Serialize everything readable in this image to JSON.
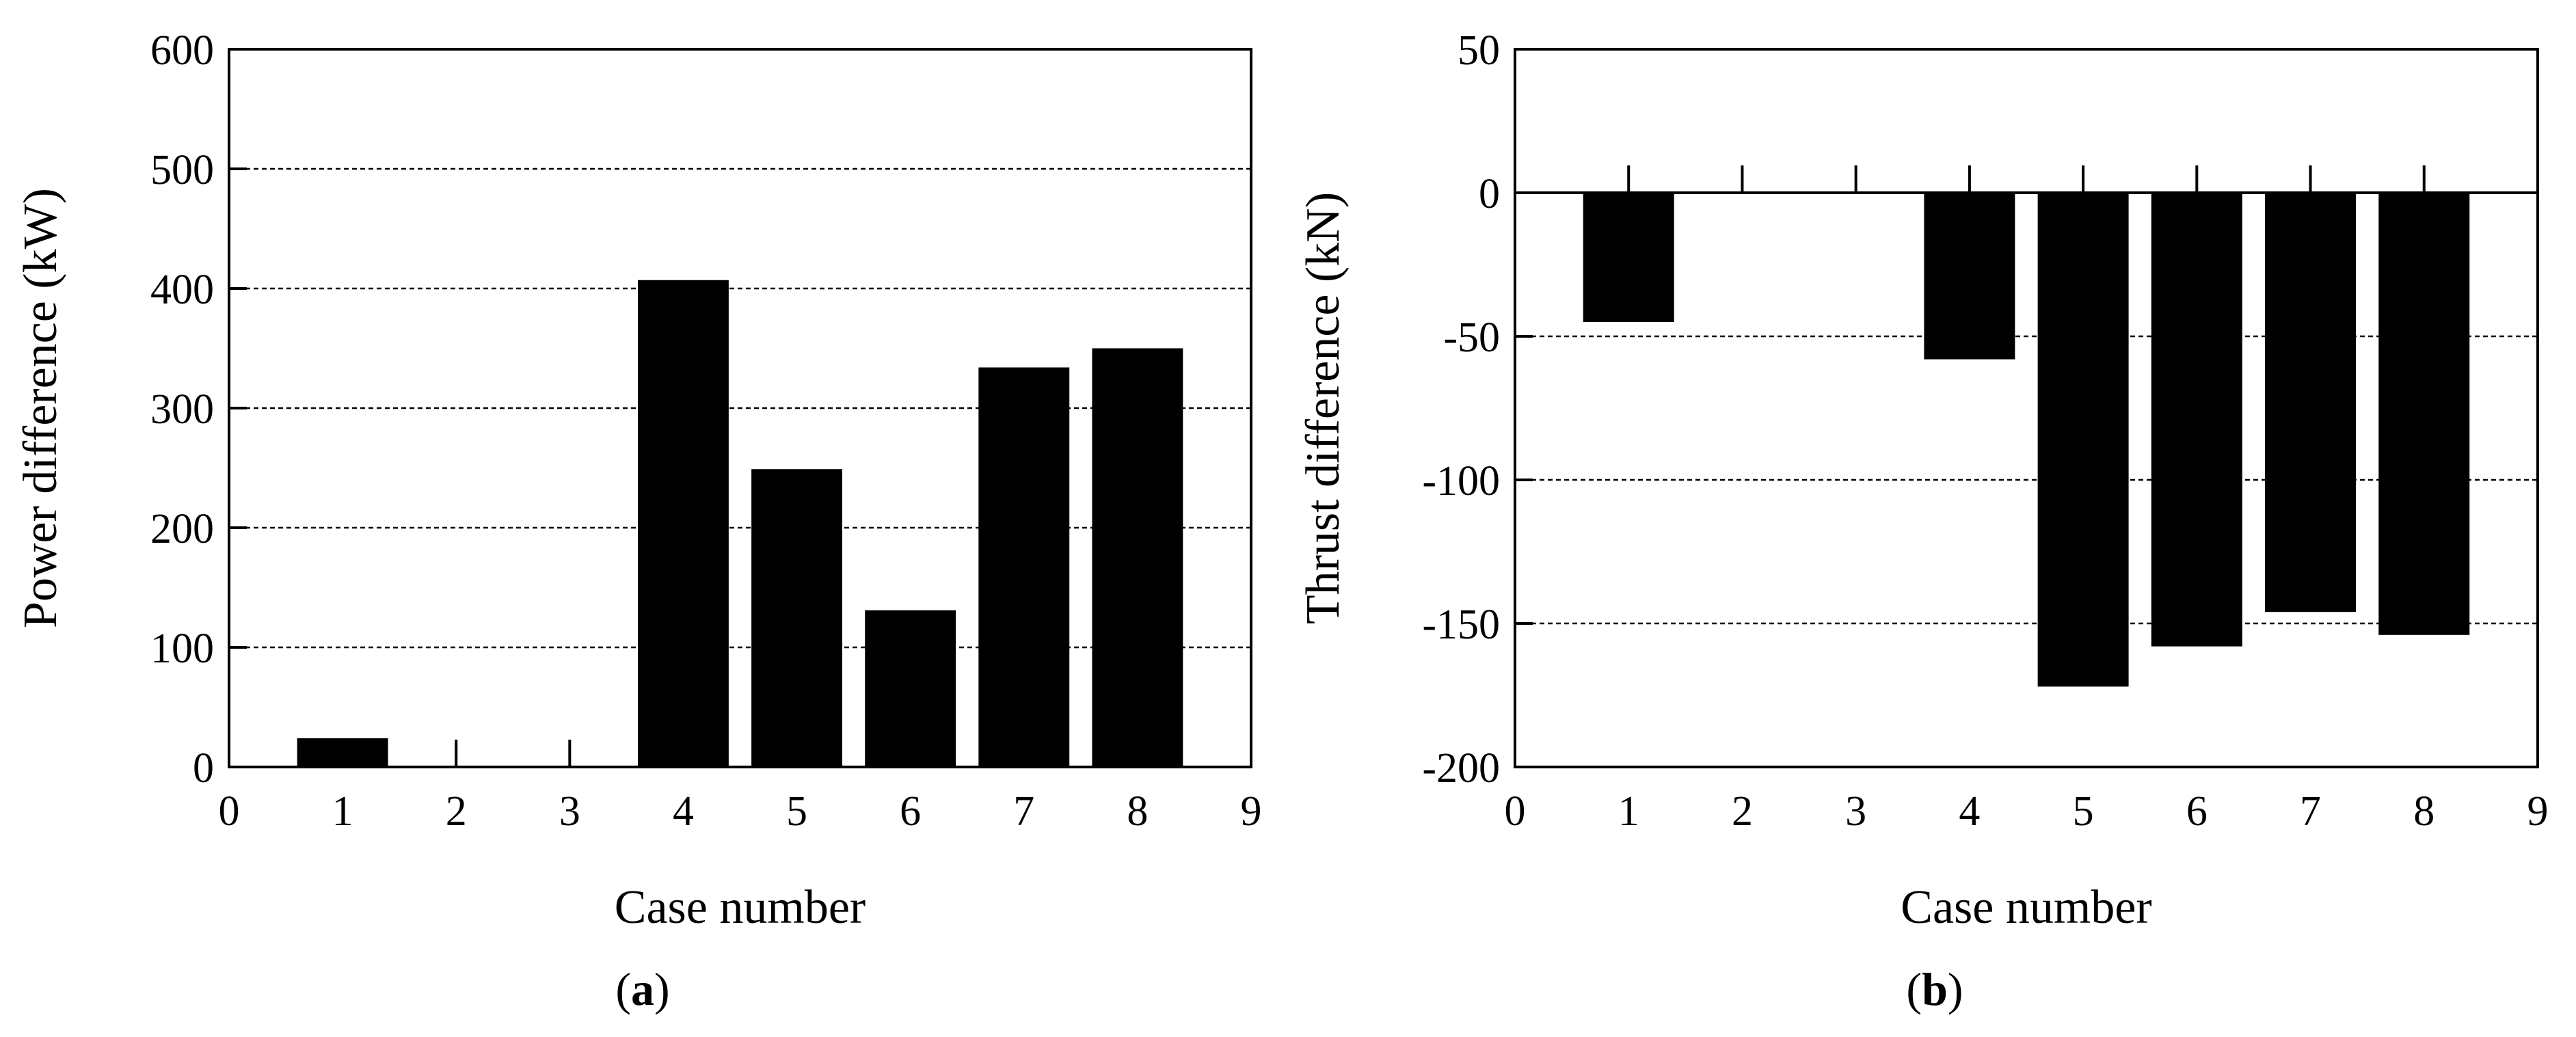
{
  "chart_data": [
    {
      "type": "bar",
      "panel_label": "a",
      "xlabel": "Case number",
      "ylabel": "Power difference (kW)",
      "xlim": [
        0,
        9
      ],
      "ylim": [
        0,
        600
      ],
      "xticks": [
        0,
        1,
        2,
        3,
        4,
        5,
        6,
        7,
        8,
        9
      ],
      "yticks": [
        0,
        100,
        200,
        300,
        400,
        500,
        600
      ],
      "grid": "horizontal dashed",
      "bar_color": "#000000",
      "x": [
        1,
        2,
        3,
        4,
        5,
        6,
        7,
        8
      ],
      "values": [
        24,
        0,
        0,
        407,
        249,
        131,
        334,
        350
      ]
    },
    {
      "type": "bar",
      "panel_label": "b",
      "xlabel": "Case number",
      "ylabel": "Thrust difference (kN)",
      "xlim": [
        0,
        9
      ],
      "ylim": [
        -200,
        50
      ],
      "xticks": [
        0,
        1,
        2,
        3,
        4,
        5,
        6,
        7,
        8,
        9
      ],
      "yticks": [
        -200,
        -150,
        -100,
        -50,
        0,
        50
      ],
      "grid": "horizontal dashed",
      "bar_color": "#000000",
      "x": [
        1,
        2,
        3,
        4,
        5,
        6,
        7,
        8
      ],
      "values": [
        -45,
        0,
        0,
        -58,
        -172,
        -158,
        -146,
        -154
      ]
    }
  ]
}
